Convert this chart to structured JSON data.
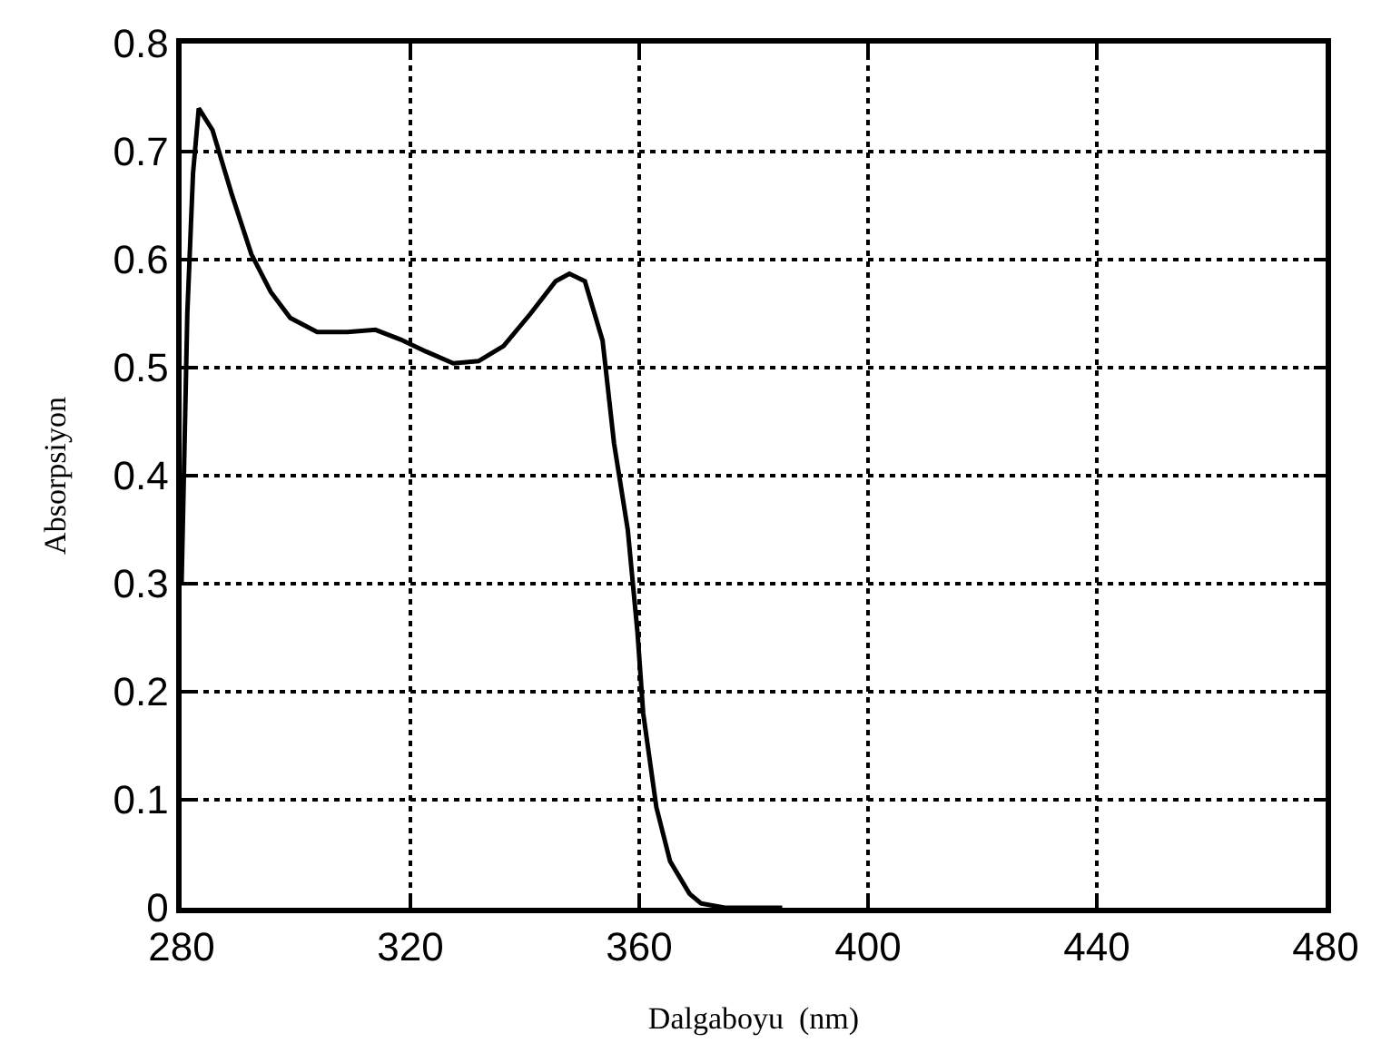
{
  "chart_data": {
    "type": "line",
    "xlabel": "Dalgaboyu  (nm)",
    "ylabel": "Absorpsiyon",
    "x": [
      280,
      281,
      282,
      283,
      285.4,
      288.8,
      292.2,
      295.6,
      299,
      303.7,
      309,
      313.9,
      318.3,
      322.7,
      327.5,
      331.9,
      336.3,
      341,
      345.4,
      347.8,
      350.5,
      353.6,
      355.6,
      358,
      359.7,
      360.7,
      363,
      365.4,
      368.8,
      370.8,
      375,
      385
    ],
    "series": [
      {
        "color": "#000000",
        "values": [
          0.3,
          0.55,
          0.68,
          0.74,
          0.72,
          0.66,
          0.605,
          0.57,
          0.546,
          0.533,
          0.533,
          0.535,
          0.526,
          0.515,
          0.504,
          0.506,
          0.52,
          0.55,
          0.58,
          0.587,
          0.58,
          0.525,
          0.43,
          0.35,
          0.255,
          0.18,
          0.093,
          0.043,
          0.013,
          0.004,
          0,
          0
        ]
      }
    ],
    "xlim": [
      280,
      480
    ],
    "xticks": [
      280,
      320,
      360,
      400,
      440,
      480
    ],
    "ylim": [
      0,
      0.8
    ],
    "yticks": [
      0,
      0.1,
      0.2,
      0.3,
      0.4,
      0.5,
      0.6,
      0.7,
      0.8
    ],
    "grid": true,
    "marker": "none",
    "line_style": "solid"
  }
}
